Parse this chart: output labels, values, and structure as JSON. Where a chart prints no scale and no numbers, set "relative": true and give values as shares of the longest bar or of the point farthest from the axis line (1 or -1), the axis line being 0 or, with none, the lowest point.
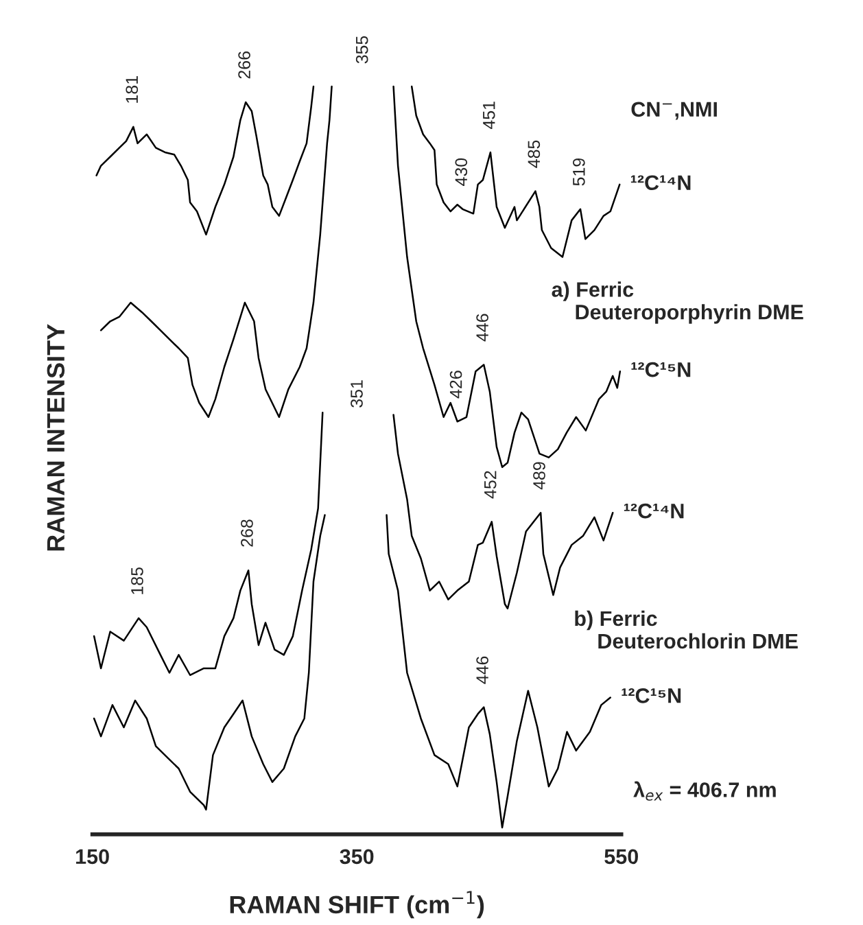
{
  "chart_data": {
    "type": "line",
    "relative": true,
    "xlabel": "RAMAN SHIFT (cm$^{−1}$)",
    "ylabel": "RAMAN INTENSITY",
    "xlim": [
      150,
      550
    ],
    "xticks": [
      150,
      350,
      550
    ],
    "series": [
      {
        "name": "¹²C¹⁴N",
        "color": "#000000",
        "x": [
          153.1,
          156.5,
          163.5,
          170.4,
          175.6,
          181,
          184.2,
          191.1,
          198.0,
          204.9,
          211.9,
          217.0,
          222.2,
          223.9,
          229.1,
          236.0,
          243.0,
          249.8,
          256.7,
          261.9,
          266,
          270.5,
          274.0,
          279.2,
          282.6,
          286.1,
          291.2,
          296.4,
          301.6,
          306.8,
          312.0,
          315.5,
          317.2,
          354,
          391.5,
          394.9,
          400.1,
          405.2,
          408.7,
          410.4,
          415.6,
          420.8,
          426.0,
          430,
          438.1,
          441.5,
          445.3,
          451,
          455.7,
          461.9,
          469.2,
          471.0,
          485,
          488,
          489.9,
          496.9,
          505.5,
          512.4,
          519,
          522.8,
          529.6,
          536.5,
          541.7,
          548.7
        ],
        "values": [
          0.881,
          0.894,
          0.906,
          0.918,
          0.927,
          0.946,
          0.924,
          0.936,
          0.918,
          0.912,
          0.909,
          0.894,
          0.875,
          0.845,
          0.833,
          0.802,
          0.839,
          0.869,
          0.906,
          0.955,
          0.979,
          0.967,
          0.934,
          0.881,
          0.869,
          0.839,
          0.827,
          0.851,
          0.875,
          0.9,
          0.924,
          0.973,
          1.0,
          null,
          1.0,
          0.961,
          0.936,
          0.924,
          0.915,
          0.869,
          0.845,
          0.833,
          0.842,
          0.836,
          0.83,
          0.869,
          0.875,
          0.912,
          0.839,
          0.811,
          0.839,
          0.821,
          0.86,
          0.839,
          0.808,
          0.784,
          0.772,
          0.821,
          0.836,
          0.796,
          0.808,
          0.827,
          0.833,
          0.869
        ]
      },
      {
        "name": "¹²C¹⁵N",
        "color": "#000000",
        "x": [
          156.5,
          163.5,
          170.4,
          179.0,
          187.6,
          194.6,
          201.5,
          208.3,
          215.3,
          222.2,
          225.7,
          230.8,
          237.8,
          243.0,
          249.8,
          256.7,
          265.3,
          272.3,
          275.7,
          281.0,
          291.2,
          298.2,
          306.8,
          312.0,
          317.2,
          322.3,
          327.5,
          329.3,
          331.0,
          354,
          377.7,
          381.1,
          388.0,
          394.9,
          400.1,
          408.7,
          415.6,
          420.8,
          426,
          432.9,
          439.8,
          446,
          450.5,
          455.7,
          459.9,
          464.0,
          469.2,
          474.4,
          479.5,
          488.1,
          495.1,
          502.0,
          508.6,
          515.8,
          523.1,
          533.1,
          538.6,
          543.5,
          546.9,
          549.0
        ],
        "values": [
          0.674,
          0.686,
          0.692,
          0.711,
          0.698,
          0.686,
          0.674,
          0.662,
          0.65,
          0.637,
          0.601,
          0.577,
          0.558,
          0.582,
          0.625,
          0.662,
          0.711,
          0.686,
          0.637,
          0.595,
          0.558,
          0.595,
          0.625,
          0.65,
          0.711,
          0.802,
          0.924,
          0.955,
          1.0,
          null,
          1.0,
          0.894,
          0.772,
          0.686,
          0.65,
          0.601,
          0.558,
          0.577,
          0.552,
          0.558,
          0.619,
          0.628,
          0.592,
          0.518,
          0.491,
          0.497,
          0.537,
          0.564,
          0.555,
          0.509,
          0.504,
          0.515,
          0.537,
          0.558,
          0.54,
          0.582,
          0.592,
          0.613,
          0.597,
          0.619
        ]
      },
      {
        "name": "¹²C¹⁴N",
        "color": "#000000",
        "x": [
          151.3,
          156.5,
          163.5,
          173.8,
          185,
          191.1,
          201.5,
          208.3,
          215.3,
          223.9,
          234.3,
          243.0,
          249.8,
          256.7,
          261.9,
          268,
          270.5,
          275.7,
          280.9,
          287.8,
          294.8,
          301.6,
          308.6,
          315.5,
          320.7,
          324.1,
          350,
          377.7,
          381.1,
          388.0,
          391.5,
          398.4,
          405.2,
          412.2,
          419.1,
          426.0,
          434.7,
          441.5,
          445.3,
          452,
          455.7,
          461.9,
          464.0,
          471.0,
          477.9,
          489,
          491,
          498.5,
          503.7,
          512.4,
          521.0,
          529.6,
          536.5,
          543.5
        ],
        "values": [
          0.265,
          0.222,
          0.271,
          0.259,
          0.289,
          0.277,
          0.24,
          0.216,
          0.24,
          0.213,
          0.222,
          0.222,
          0.265,
          0.289,
          0.326,
          0.353,
          0.308,
          0.253,
          0.283,
          0.247,
          0.24,
          0.265,
          0.326,
          0.381,
          0.436,
          0.564,
          null,
          0.561,
          0.509,
          0.448,
          0.399,
          0.369,
          0.326,
          0.338,
          0.314,
          0.326,
          0.338,
          0.387,
          0.39,
          0.418,
          0.372,
          0.308,
          0.302,
          0.35,
          0.405,
          0.43,
          0.375,
          0.32,
          0.357,
          0.387,
          0.399,
          0.424,
          0.393,
          0.43
        ]
      },
      {
        "name": "¹²C¹⁵N",
        "color": "#000000",
        "x": [
          151.3,
          156.5,
          165.2,
          173.8,
          182.4,
          191.1,
          198.0,
          208.3,
          215.3,
          223.9,
          234.3,
          236.0,
          241.2,
          249.8,
          256.7,
          263.6,
          270.5,
          279.2,
          286.1,
          294.8,
          303.4,
          310.3,
          313.7,
          317.2,
          322.3,
          325.8,
          350,
          372.5,
          374.1,
          381.1,
          388.0,
          398.4,
          408.7,
          419.1,
          426.0,
          434.7,
          441.5,
          446,
          450.5,
          455.7,
          459.9,
          464.0,
          471.0,
          479.5,
          486.5,
          495.1,
          502.0,
          508.9,
          515.8,
          526.2,
          534.8,
          541.7
        ],
        "values": [
          0.155,
          0.131,
          0.173,
          0.143,
          0.179,
          0.155,
          0.118,
          0.1,
          0.088,
          0.057,
          0.039,
          0.033,
          0.106,
          0.143,
          0.161,
          0.179,
          0.131,
          0.094,
          0.07,
          0.088,
          0.131,
          0.155,
          0.216,
          0.338,
          0.399,
          0.427,
          null,
          0.427,
          0.375,
          0.326,
          0.216,
          0.155,
          0.106,
          0.094,
          0.064,
          0.143,
          0.161,
          0.17,
          0.134,
          0.07,
          0.009,
          0.051,
          0.125,
          0.192,
          0.143,
          0.064,
          0.088,
          0.137,
          0.112,
          0.137,
          0.173,
          0.183
        ]
      }
    ],
    "annotations": [
      "CN$^{−}$,NMI",
      "a) Ferric\n    Deuteroporphyrin DME",
      "b) Ferric\n    Deuterochlorin DME",
      "λ$_{ex}$ = 406.7 nm",
      "355",
      "351",
      {
        "text": "181",
        "x": 181,
        "y": 0.946
      },
      {
        "text": "266",
        "x": 266,
        "y": 0.979
      },
      {
        "text": "430",
        "x": 430,
        "y": 0.836
      },
      {
        "text": "451",
        "x": 451,
        "y": 0.912
      },
      {
        "text": "485",
        "x": 485,
        "y": 0.86
      },
      {
        "text": "519",
        "x": 519,
        "y": 0.836
      },
      {
        "text": "446",
        "x": 446,
        "y": 0.628
      },
      {
        "text": "426",
        "x": 426,
        "y": 0.552
      },
      {
        "text": "452",
        "x": 452,
        "y": 0.418
      },
      {
        "text": "489",
        "x": 489,
        "y": 0.43
      },
      {
        "text": "185",
        "x": 185,
        "y": 0.289
      },
      {
        "text": "268",
        "x": 268,
        "y": 0.353
      },
      {
        "text": "446",
        "x": 446,
        "y": 0.17
      }
    ]
  }
}
